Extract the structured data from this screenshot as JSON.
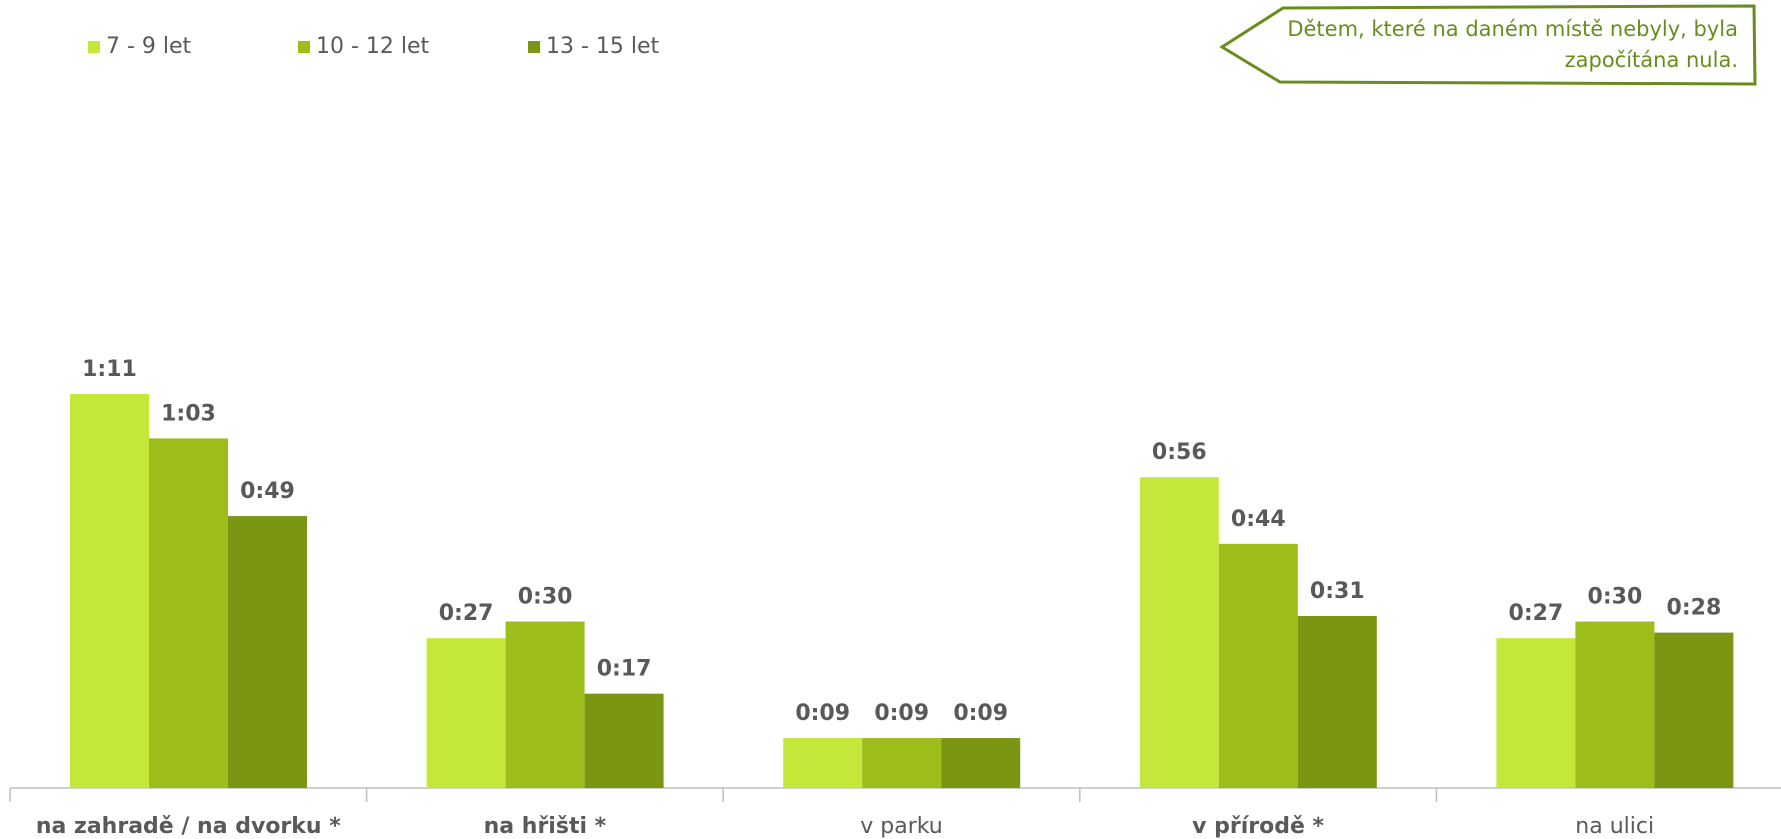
{
  "chart_data": {
    "type": "bar",
    "categories": [
      "na zahradě / na dvorku *",
      "na hřišti *",
      "v parku",
      "v přírodě *",
      "na ulici"
    ],
    "category_bold": [
      true,
      true,
      false,
      true,
      false
    ],
    "series": [
      {
        "name": "7 - 9 let",
        "color": "#c4e83a",
        "values_min": [
          71,
          27,
          9,
          56,
          27
        ],
        "labels": [
          "1:11",
          "0:27",
          "0:09",
          "0:56",
          "0:27"
        ]
      },
      {
        "name": "10 - 12 let",
        "color": "#9dbd1a",
        "values_min": [
          63,
          30,
          9,
          44,
          30
        ],
        "labels": [
          "1:03",
          "0:30",
          "0:09",
          "0:44",
          "0:30"
        ]
      },
      {
        "name": "13 - 15 let",
        "color": "#7a9612",
        "values_min": [
          49,
          17,
          9,
          31,
          28
        ],
        "labels": [
          "0:49",
          "0:17",
          "0:09",
          "0:31",
          "0:28"
        ]
      }
    ],
    "ylim": [
      0,
      80
    ],
    "grid": false,
    "legend_position": "top-left",
    "annotation": "Dětem, které na daném místě nebyly, byla započítána nula."
  }
}
